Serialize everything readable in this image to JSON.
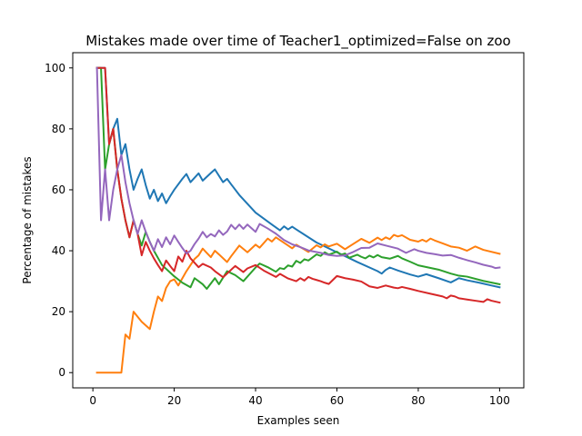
{
  "chart_data": {
    "type": "line",
    "title": "Mistakes made over time of Teacher1_optimized=False on zoo",
    "xlabel": "Examples seen",
    "ylabel": "Percentage of mistakes",
    "xlim": [
      -4.95,
      105.95
    ],
    "ylim": [
      -5,
      105
    ],
    "xticks": [
      0,
      20,
      40,
      60,
      80,
      100
    ],
    "yticks": [
      0,
      20,
      40,
      60,
      80,
      100
    ],
    "grid": false,
    "legend": "none",
    "series": [
      {
        "color": "#1f77b4",
        "points": [
          [
            1,
            100
          ],
          [
            2,
            100
          ],
          [
            3,
            100
          ],
          [
            4,
            75
          ],
          [
            5,
            80
          ],
          [
            6,
            83.3
          ],
          [
            7,
            71.4
          ],
          [
            8,
            75
          ],
          [
            9,
            66.7
          ],
          [
            10,
            60
          ],
          [
            11,
            63.6
          ],
          [
            12,
            66.7
          ],
          [
            13,
            61.5
          ],
          [
            14,
            57.1
          ],
          [
            15,
            60
          ],
          [
            16,
            56.3
          ],
          [
            17,
            58.8
          ],
          [
            18,
            55.6
          ],
          [
            19,
            57.9
          ],
          [
            20,
            60
          ],
          [
            22,
            63.6
          ],
          [
            23,
            65.2
          ],
          [
            24,
            62.5
          ],
          [
            26,
            65.4
          ],
          [
            27,
            63
          ],
          [
            29,
            65.5
          ],
          [
            30,
            66.7
          ],
          [
            32,
            62.5
          ],
          [
            33,
            63.6
          ],
          [
            34,
            61.8
          ],
          [
            36,
            58.3
          ],
          [
            40,
            52.5
          ],
          [
            44,
            48.6
          ],
          [
            46,
            46.7
          ],
          [
            47,
            48.0
          ],
          [
            48,
            47.0
          ],
          [
            49,
            47.9
          ],
          [
            50,
            47.0
          ],
          [
            55,
            42.7
          ],
          [
            60,
            39.5
          ],
          [
            65,
            36.3
          ],
          [
            70,
            33.3
          ],
          [
            71,
            32.5
          ],
          [
            72,
            33.7
          ],
          [
            73,
            34.5
          ],
          [
            75,
            33.5
          ],
          [
            78,
            32.2
          ],
          [
            80,
            31.5
          ],
          [
            82,
            32.3
          ],
          [
            85,
            31.0
          ],
          [
            88,
            29.6
          ],
          [
            90,
            31.0
          ],
          [
            92,
            30.3
          ],
          [
            95,
            29.5
          ],
          [
            98,
            28.6
          ],
          [
            100,
            28
          ]
        ]
      },
      {
        "color": "#ff7f0e",
        "points": [
          [
            1,
            0
          ],
          [
            7,
            0
          ],
          [
            8,
            12.5
          ],
          [
            9,
            11.1
          ],
          [
            10,
            20
          ],
          [
            12,
            16.7
          ],
          [
            14,
            14.3
          ],
          [
            15,
            20
          ],
          [
            16,
            25
          ],
          [
            17,
            23.5
          ],
          [
            18,
            27.8
          ],
          [
            19,
            30
          ],
          [
            20,
            30.6
          ],
          [
            21,
            28.6
          ],
          [
            23,
            33.3
          ],
          [
            25,
            37.3
          ],
          [
            26,
            38.5
          ],
          [
            27,
            40.7
          ],
          [
            28,
            39.3
          ],
          [
            29,
            37.9
          ],
          [
            30,
            40
          ],
          [
            31,
            38.8
          ],
          [
            33,
            36.3
          ],
          [
            34,
            38.2
          ],
          [
            36,
            41.7
          ],
          [
            38,
            39.5
          ],
          [
            40,
            42
          ],
          [
            41,
            41
          ],
          [
            43,
            44
          ],
          [
            44,
            43
          ],
          [
            45,
            44.4
          ],
          [
            46,
            43.5
          ],
          [
            48,
            41.7
          ],
          [
            49,
            40.8
          ],
          [
            50,
            42
          ],
          [
            52,
            40.4
          ],
          [
            53,
            39.6
          ],
          [
            55,
            41.8
          ],
          [
            56,
            41.1
          ],
          [
            57,
            42.1
          ],
          [
            58,
            41.4
          ],
          [
            60,
            42.3
          ],
          [
            62,
            40.5
          ],
          [
            66,
            43.9
          ],
          [
            68,
            42.6
          ],
          [
            70,
            44.3
          ],
          [
            71,
            43.5
          ],
          [
            72,
            44.4
          ],
          [
            73,
            43.8
          ],
          [
            74,
            45.2
          ],
          [
            75,
            44.7
          ],
          [
            76,
            45.1
          ],
          [
            78,
            43.6
          ],
          [
            80,
            43
          ],
          [
            81,
            43.6
          ],
          [
            82,
            43
          ],
          [
            83,
            44
          ],
          [
            84,
            43.4
          ],
          [
            86,
            42.4
          ],
          [
            88,
            41.4
          ],
          [
            90,
            41
          ],
          [
            92,
            40
          ],
          [
            94,
            41.4
          ],
          [
            96,
            40.3
          ],
          [
            100,
            39
          ]
        ]
      },
      {
        "color": "#2ca02c",
        "points": [
          [
            1,
            100
          ],
          [
            2,
            100
          ],
          [
            3,
            66.7
          ],
          [
            4,
            75
          ],
          [
            5,
            80
          ],
          [
            6,
            66.7
          ],
          [
            7,
            57.1
          ],
          [
            8,
            50
          ],
          [
            9,
            44.4
          ],
          [
            10,
            50
          ],
          [
            11,
            45.5
          ],
          [
            12,
            41.7
          ],
          [
            13,
            46.2
          ],
          [
            14,
            42.9
          ],
          [
            15,
            40
          ],
          [
            17,
            35.3
          ],
          [
            20,
            31.6
          ],
          [
            22,
            29.5
          ],
          [
            24,
            28
          ],
          [
            25,
            31
          ],
          [
            26,
            30
          ],
          [
            27,
            29
          ],
          [
            28,
            27.5
          ],
          [
            30,
            31
          ],
          [
            31,
            29
          ],
          [
            33,
            33.3
          ],
          [
            35,
            32
          ],
          [
            37,
            30
          ],
          [
            40,
            34.5
          ],
          [
            41,
            35.8
          ],
          [
            43,
            34.6
          ],
          [
            45,
            33.1
          ],
          [
            46,
            34.3
          ],
          [
            47,
            34
          ],
          [
            48,
            35.2
          ],
          [
            49,
            34.8
          ],
          [
            50,
            36.7
          ],
          [
            51,
            36
          ],
          [
            52,
            37.2
          ],
          [
            53,
            36.8
          ],
          [
            55,
            38.8
          ],
          [
            56,
            38.3
          ],
          [
            57,
            39.5
          ],
          [
            58,
            38.7
          ],
          [
            60,
            39.7
          ],
          [
            61,
            38.7
          ],
          [
            62,
            39.1
          ],
          [
            63,
            37.7
          ],
          [
            65,
            38.7
          ],
          [
            66,
            38
          ],
          [
            67,
            37.5
          ],
          [
            68,
            38.4
          ],
          [
            69,
            37.8
          ],
          [
            70,
            38.6
          ],
          [
            71,
            37.9
          ],
          [
            73,
            37.4
          ],
          [
            75,
            38.3
          ],
          [
            76,
            37.5
          ],
          [
            78,
            36.4
          ],
          [
            80,
            35.2
          ],
          [
            85,
            33.8
          ],
          [
            88,
            32.5
          ],
          [
            90,
            31.8
          ],
          [
            92,
            31.5
          ],
          [
            96,
            30.1
          ],
          [
            100,
            29
          ]
        ]
      },
      {
        "color": "#d62728",
        "points": [
          [
            1,
            100
          ],
          [
            2,
            100
          ],
          [
            3,
            100
          ],
          [
            4,
            75
          ],
          [
            5,
            80
          ],
          [
            6,
            66.7
          ],
          [
            7,
            57.1
          ],
          [
            8,
            50
          ],
          [
            9,
            44.4
          ],
          [
            10,
            50
          ],
          [
            11,
            45.5
          ],
          [
            12,
            38.5
          ],
          [
            13,
            42.9
          ],
          [
            14,
            40
          ],
          [
            15,
            37.5
          ],
          [
            16,
            35.3
          ],
          [
            17,
            33.3
          ],
          [
            18,
            36.8
          ],
          [
            19,
            35
          ],
          [
            20,
            33.3
          ],
          [
            21,
            38.1
          ],
          [
            22,
            36.4
          ],
          [
            23,
            40
          ],
          [
            24,
            37.5
          ],
          [
            26,
            34.6
          ],
          [
            27,
            35.7
          ],
          [
            29,
            34.5
          ],
          [
            30,
            33.3
          ],
          [
            32,
            31.3
          ],
          [
            35,
            35
          ],
          [
            36,
            34
          ],
          [
            37,
            33
          ],
          [
            38,
            34.2
          ],
          [
            40,
            35.3
          ],
          [
            42,
            33.5
          ],
          [
            45,
            31.4
          ],
          [
            46,
            32.4
          ],
          [
            48,
            30.9
          ],
          [
            50,
            30
          ],
          [
            51,
            31
          ],
          [
            52,
            30.2
          ],
          [
            53,
            31.4
          ],
          [
            54,
            30.8
          ],
          [
            55,
            30.4
          ],
          [
            56,
            30
          ],
          [
            57,
            29.5
          ],
          [
            58,
            29.1
          ],
          [
            60,
            31.7
          ],
          [
            62,
            31
          ],
          [
            64,
            30.5
          ],
          [
            66,
            29.9
          ],
          [
            68,
            28.3
          ],
          [
            70,
            27.8
          ],
          [
            72,
            28.6
          ],
          [
            74,
            27.9
          ],
          [
            75,
            27.7
          ],
          [
            76,
            28.1
          ],
          [
            78,
            27.5
          ],
          [
            80,
            26.8
          ],
          [
            83,
            25.9
          ],
          [
            86,
            25
          ],
          [
            87,
            24.4
          ],
          [
            88,
            25.3
          ],
          [
            89,
            25
          ],
          [
            90,
            24.4
          ],
          [
            92,
            24
          ],
          [
            94,
            23.6
          ],
          [
            96,
            23.2
          ],
          [
            97,
            24.1
          ],
          [
            98,
            23.6
          ],
          [
            100,
            23
          ]
        ]
      },
      {
        "color": "#9467bd",
        "points": [
          [
            1,
            100
          ],
          [
            2,
            50
          ],
          [
            3,
            66.7
          ],
          [
            4,
            50
          ],
          [
            5,
            60
          ],
          [
            6,
            66.7
          ],
          [
            7,
            71.4
          ],
          [
            8,
            62.5
          ],
          [
            9,
            55.6
          ],
          [
            10,
            50
          ],
          [
            11,
            45.5
          ],
          [
            12,
            50
          ],
          [
            13,
            46.2
          ],
          [
            14,
            42.9
          ],
          [
            15,
            40
          ],
          [
            16,
            43.8
          ],
          [
            17,
            41.2
          ],
          [
            18,
            44.4
          ],
          [
            19,
            42.1
          ],
          [
            20,
            45
          ],
          [
            21,
            42.9
          ],
          [
            22,
            40.9
          ],
          [
            23,
            39.1
          ],
          [
            24,
            40
          ],
          [
            25,
            42.2
          ],
          [
            26,
            44
          ],
          [
            27,
            46.2
          ],
          [
            28,
            44.4
          ],
          [
            29,
            45.5
          ],
          [
            30,
            44.7
          ],
          [
            31,
            46.7
          ],
          [
            32,
            45.2
          ],
          [
            33,
            46.3
          ],
          [
            34,
            48.5
          ],
          [
            35,
            47.1
          ],
          [
            36,
            48.6
          ],
          [
            37,
            47.2
          ],
          [
            38,
            48.6
          ],
          [
            39,
            47.4
          ],
          [
            40,
            46.2
          ],
          [
            41,
            48.8
          ],
          [
            43,
            47.3
          ],
          [
            45,
            45.6
          ],
          [
            47,
            43.5
          ],
          [
            49,
            42.1
          ],
          [
            51,
            41.2
          ],
          [
            53,
            40.1
          ],
          [
            56,
            39.3
          ],
          [
            58,
            38.6
          ],
          [
            60,
            38.3
          ],
          [
            62,
            38.5
          ],
          [
            64,
            39.6
          ],
          [
            66,
            40.9
          ],
          [
            68,
            41
          ],
          [
            70,
            42.4
          ],
          [
            72,
            41.7
          ],
          [
            75,
            40.7
          ],
          [
            77,
            39.3
          ],
          [
            79,
            40.5
          ],
          [
            80,
            40
          ],
          [
            82,
            39.3
          ],
          [
            84,
            38.9
          ],
          [
            86,
            38.4
          ],
          [
            88,
            38.6
          ],
          [
            90,
            37.7
          ],
          [
            92,
            36.9
          ],
          [
            94,
            36.2
          ],
          [
            96,
            35.4
          ],
          [
            98,
            34.8
          ],
          [
            99,
            34.3
          ],
          [
            100,
            34.5
          ]
        ]
      }
    ]
  }
}
